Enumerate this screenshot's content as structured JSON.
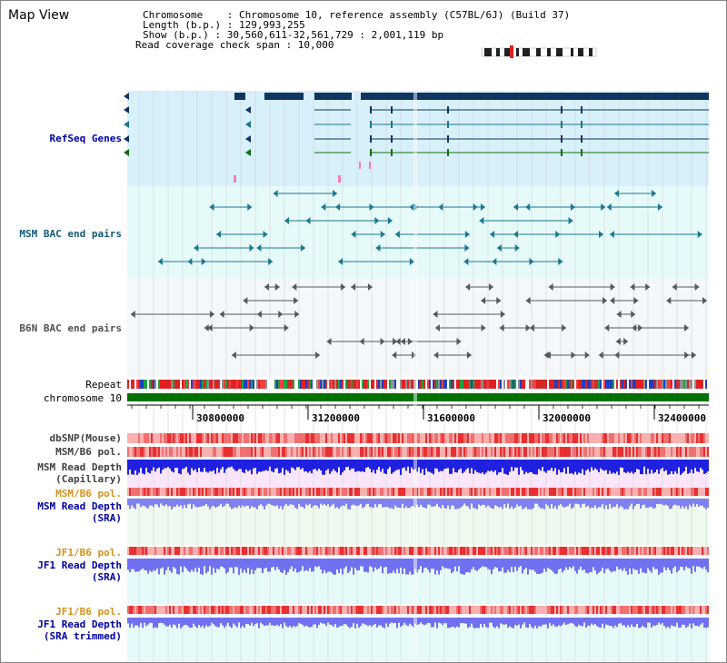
{
  "page": {
    "title": "Map View"
  },
  "info": {
    "chromosome_line": "Chromosome    : Chromosome 10, reference assembly (C57BL/6J) (Build 37)",
    "length_line": "Length (b.p.) : 129,993,255",
    "show_line": "Show (b.p.) : 30,560,611-32,561,729 : 2,001,119 bp",
    "coverage_line": "Read coverage check span : 10,000"
  },
  "tracks": {
    "refseq": "RefSeq Genes",
    "msm_bac": "MSM BAC end pairs",
    "b6n_bac": "B6N BAC end pairs",
    "repeat": "Repeat",
    "chromosome": "chromosome 10",
    "dbsnp": "dbSNP(Mouse)",
    "msm_b6_pol": "MSM/B6 pol.",
    "msm_depth_cap_1": "MSM Read Depth",
    "msm_depth_cap_2": "(Capillary)",
    "msm_b6_pol2": "MSM/B6 pol.",
    "msm_depth_sra_1": "MSM Read Depth",
    "msm_depth_sra_2": "(SRA)",
    "jf1_pol_1": "JF1/B6 pol.",
    "jf1_depth_sra_1": "JF1 Read Depth",
    "jf1_depth_sra_2": "(SRA)",
    "jf1_pol_2": "JF1/B6 pol.",
    "jf1_depth_trim_1": "JF1 Read Depth",
    "jf1_depth_trim_2": "(SRA trimmed)"
  },
  "axis": {
    "ticks": [
      "30800000",
      "31200000",
      "31600000",
      "32000000",
      "32400000"
    ]
  },
  "colors": {
    "refseq_bg": "#d8f0fa",
    "bac_bg": "#e6fafa",
    "b6n_bg": "#f4f8fa",
    "gene_dark": "#0e3660",
    "teal": "#1a7890",
    "gray_feature": "#505a60",
    "chromosome_green": "#007000",
    "repeat_red": "#e02020",
    "depth_blue": "#2020e0",
    "depth_lightblue": "#7070f0",
    "pol_red": "#f06060"
  }
}
